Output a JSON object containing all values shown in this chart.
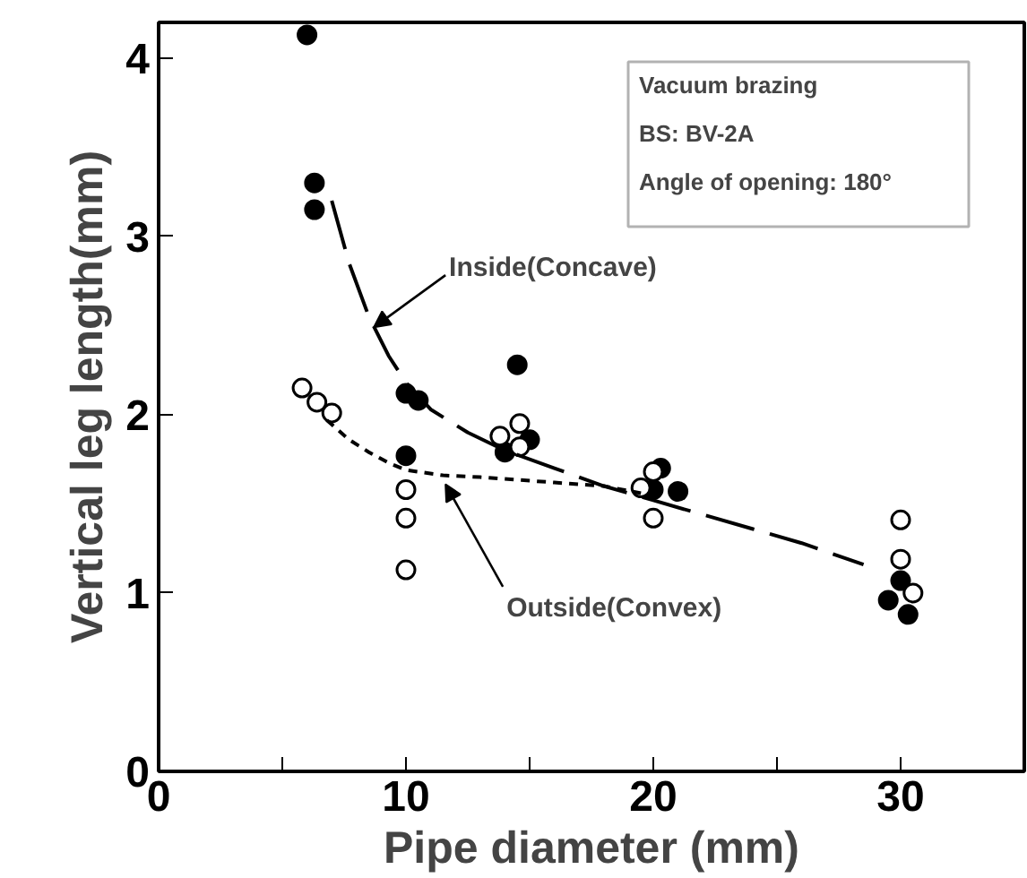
{
  "chart_data": {
    "type": "scatter",
    "xlabel": "Pipe diameter (mm)",
    "ylabel": "Vertical leg length(mm)",
    "xlim": [
      0,
      35
    ],
    "ylim": [
      0,
      4.2
    ],
    "xticks": [
      0,
      {
        "value": 5,
        "label": null
      },
      10,
      {
        "value": 15,
        "label": null
      },
      20,
      {
        "value": 25,
        "label": null
      },
      30
    ],
    "yticks": [
      0,
      1,
      2,
      3,
      4
    ],
    "grid": false,
    "marker": "circle",
    "series": [
      {
        "color": "#000000",
        "x": [
          6,
          6.3,
          6.3,
          10,
          10.5,
          10,
          14.5,
          14,
          15,
          20.3,
          20,
          21,
          29.5,
          30,
          30.3
        ],
        "values": [
          4.13,
          3.3,
          3.15,
          2.12,
          2.08,
          1.77,
          2.28,
          1.79,
          1.86,
          1.7,
          1.58,
          1.57,
          0.96,
          1.07,
          0.88
        ]
      },
      {
        "color": "#ffffff",
        "x": [
          5.8,
          6.4,
          7,
          10,
          10,
          10,
          13.8,
          14.6,
          14.6,
          19.5,
          20,
          20,
          30,
          30,
          30.5
        ],
        "values": [
          2.15,
          2.07,
          2.01,
          1.58,
          1.42,
          1.13,
          1.88,
          1.95,
          1.82,
          1.59,
          1.68,
          1.42,
          1.41,
          1.19,
          1.0
        ]
      },
      {
        "type": "line",
        "marker": "none",
        "color": "#000000",
        "line_style": "dashed",
        "x": [
          7,
          7.7,
          8.5,
          9.3,
          10,
          11,
          12.5,
          14,
          16,
          18,
          20,
          22,
          24,
          26,
          28.5
        ],
        "values": [
          3.2,
          2.85,
          2.55,
          2.33,
          2.18,
          2.03,
          1.9,
          1.8,
          1.7,
          1.6,
          1.52,
          1.44,
          1.36,
          1.28,
          1.16
        ]
      },
      {
        "type": "line",
        "marker": "none",
        "color": "#000000",
        "line_style": "dotted",
        "x": [
          6.8,
          7.7,
          8.5,
          9.3,
          10,
          11.5,
          13,
          16,
          18,
          19.5
        ],
        "values": [
          1.97,
          1.86,
          1.79,
          1.73,
          1.69,
          1.66,
          1.65,
          1.62,
          1.6,
          1.56
        ]
      }
    ],
    "annotations": [
      {
        "text": "Inside(Concave)",
        "x": 8.7,
        "y": 2.49
      },
      {
        "text": "Outside(Convex)",
        "x": 11.6,
        "y": 1.61
      },
      "Vacuum brazing",
      "BS: BV-2A",
      "Angle of opening: 180°"
    ]
  }
}
